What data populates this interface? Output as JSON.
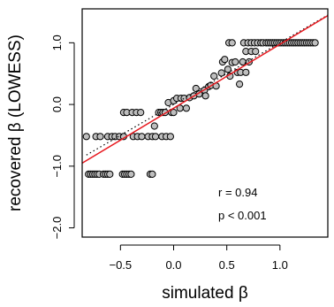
{
  "chart_data": {
    "type": "scatter",
    "xlabel": "simulated β",
    "ylabel": "recovered β (LOWESS)",
    "xlim": [
      -0.86,
      1.45
    ],
    "ylim": [
      -2.15,
      1.55
    ],
    "xticks": [
      -0.5,
      0.0,
      0.5,
      1.0
    ],
    "xtick_labels": [
      "−0.5",
      "0.0",
      "0.5",
      "1.0"
    ],
    "yticks": [
      -2.0,
      -1.0,
      0.0,
      1.0
    ],
    "ytick_labels": [
      "−2.0",
      "−1.0",
      "0.0",
      "1.0"
    ],
    "grid": false,
    "point_color": "#bebebe",
    "point_edge_color": "#000000",
    "fit_line": {
      "color": "#e8191f",
      "x": [
        -0.86,
        1.45
      ],
      "y": [
        -0.95,
        1.44
      ]
    },
    "identity_line": {
      "color": "#000000",
      "style": "dotted",
      "x": [
        -0.82,
        1.45
      ],
      "y": [
        -0.82,
        1.45
      ]
    },
    "annotations": [
      "r = 0.94",
      "p < 0.001"
    ],
    "points": [
      [
        -0.8,
        -1.13
      ],
      [
        -0.78,
        -1.13
      ],
      [
        -0.76,
        -1.13
      ],
      [
        -0.74,
        -1.13
      ],
      [
        -0.72,
        -1.13
      ],
      [
        -0.7,
        -1.13
      ],
      [
        -0.66,
        -1.13
      ],
      [
        -0.64,
        -1.13
      ],
      [
        -0.62,
        -1.13
      ],
      [
        -0.6,
        -1.13
      ],
      [
        -0.48,
        -1.13
      ],
      [
        -0.46,
        -1.13
      ],
      [
        -0.44,
        -1.13
      ],
      [
        -0.42,
        -1.13
      ],
      [
        -0.4,
        -1.13
      ],
      [
        -0.22,
        -1.13
      ],
      [
        -0.2,
        -1.13
      ],
      [
        -0.82,
        -0.52
      ],
      [
        -0.73,
        -0.52
      ],
      [
        -0.69,
        -0.52
      ],
      [
        -0.62,
        -0.52
      ],
      [
        -0.58,
        -0.52
      ],
      [
        -0.55,
        -0.52
      ],
      [
        -0.51,
        -0.52
      ],
      [
        -0.47,
        -0.52
      ],
      [
        -0.38,
        -0.52
      ],
      [
        -0.34,
        -0.52
      ],
      [
        -0.3,
        -0.52
      ],
      [
        -0.24,
        -0.52
      ],
      [
        -0.2,
        -0.52
      ],
      [
        -0.17,
        -0.52
      ],
      [
        -0.11,
        -0.52
      ],
      [
        -0.07,
        -0.52
      ],
      [
        -0.03,
        -0.52
      ],
      [
        -0.47,
        -0.13
      ],
      [
        -0.44,
        -0.13
      ],
      [
        -0.39,
        -0.13
      ],
      [
        -0.35,
        -0.13
      ],
      [
        -0.31,
        -0.13
      ],
      [
        -0.14,
        -0.13
      ],
      [
        -0.12,
        -0.13
      ],
      [
        -0.1,
        -0.13
      ],
      [
        -0.08,
        -0.13
      ],
      [
        -0.02,
        -0.13
      ],
      [
        0.0,
        -0.13
      ],
      [
        -0.18,
        -0.35
      ],
      [
        -0.05,
        0.03
      ],
      [
        0.0,
        0.06
      ],
      [
        0.03,
        0.1
      ],
      [
        0.07,
        0.1
      ],
      [
        0.1,
        0.1
      ],
      [
        0.06,
        -0.06
      ],
      [
        0.12,
        -0.06
      ],
      [
        0.15,
        0.11
      ],
      [
        0.19,
        0.14
      ],
      [
        0.24,
        0.17
      ],
      [
        0.29,
        0.23
      ],
      [
        0.33,
        0.29
      ],
      [
        0.35,
        0.31
      ],
      [
        0.3,
        0.14
      ],
      [
        0.21,
        0.26
      ],
      [
        0.38,
        0.46
      ],
      [
        0.4,
        0.3
      ],
      [
        0.45,
        0.51
      ],
      [
        0.46,
        0.69
      ],
      [
        0.48,
        0.73
      ],
      [
        0.51,
        0.57
      ],
      [
        0.53,
        0.46
      ],
      [
        0.55,
        0.68
      ],
      [
        0.58,
        0.69
      ],
      [
        0.6,
        0.52
      ],
      [
        0.63,
        0.52
      ],
      [
        0.65,
        0.69
      ],
      [
        0.62,
        0.33
      ],
      [
        0.68,
        0.52
      ],
      [
        0.71,
        0.69
      ],
      [
        0.68,
        0.86
      ],
      [
        0.73,
        0.86
      ],
      [
        0.77,
        0.86
      ],
      [
        0.52,
        1.0
      ],
      [
        0.55,
        1.0
      ],
      [
        0.66,
        1.0
      ],
      [
        0.7,
        1.0
      ],
      [
        0.73,
        1.0
      ],
      [
        0.76,
        1.0
      ],
      [
        0.79,
        1.0
      ],
      [
        0.82,
        1.0
      ],
      [
        0.84,
        1.0
      ],
      [
        0.87,
        1.0
      ],
      [
        0.89,
        1.0
      ],
      [
        0.91,
        1.0
      ],
      [
        0.93,
        1.0
      ],
      [
        0.95,
        1.0
      ],
      [
        0.97,
        1.0
      ],
      [
        0.99,
        1.0
      ],
      [
        1.01,
        1.0
      ],
      [
        1.03,
        1.0
      ],
      [
        1.05,
        1.0
      ],
      [
        1.07,
        1.0
      ],
      [
        1.09,
        1.0
      ],
      [
        1.11,
        1.0
      ],
      [
        1.13,
        1.0
      ],
      [
        1.15,
        1.0
      ],
      [
        1.17,
        1.0
      ],
      [
        1.19,
        1.0
      ],
      [
        1.21,
        1.0
      ],
      [
        1.23,
        1.0
      ],
      [
        1.25,
        1.0
      ],
      [
        1.27,
        1.0
      ],
      [
        1.29,
        1.0
      ],
      [
        1.31,
        1.0
      ],
      [
        1.33,
        1.0
      ]
    ]
  }
}
